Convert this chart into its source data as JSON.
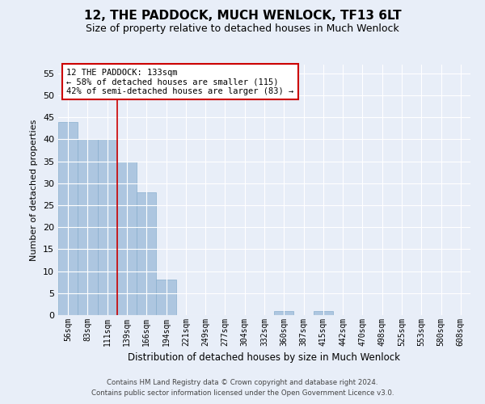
{
  "title": "12, THE PADDOCK, MUCH WENLOCK, TF13 6LT",
  "subtitle": "Size of property relative to detached houses in Much Wenlock",
  "xlabel": "Distribution of detached houses by size in Much Wenlock",
  "ylabel": "Number of detached properties",
  "categories": [
    "56sqm",
    "83sqm",
    "111sqm",
    "139sqm",
    "166sqm",
    "194sqm",
    "221sqm",
    "249sqm",
    "277sqm",
    "304sqm",
    "332sqm",
    "360sqm",
    "387sqm",
    "415sqm",
    "442sqm",
    "470sqm",
    "498sqm",
    "525sqm",
    "553sqm",
    "580sqm",
    "608sqm"
  ],
  "values": [
    44,
    40,
    40,
    35,
    28,
    8,
    0,
    0,
    0,
    0,
    0,
    1,
    0,
    1,
    0,
    0,
    0,
    0,
    0,
    0,
    0
  ],
  "bar_color": "#adc6e0",
  "bar_edge_color": "#88aece",
  "ylim": [
    0,
    57
  ],
  "yticks": [
    0,
    5,
    10,
    15,
    20,
    25,
    30,
    35,
    40,
    45,
    50,
    55
  ],
  "vline_x": 2.5,
  "vline_color": "#cc0000",
  "annotation_line1": "12 THE PADDOCK: 133sqm",
  "annotation_line2": "← 58% of detached houses are smaller (115)",
  "annotation_line3": "42% of semi-detached houses are larger (83) →",
  "annotation_box_color": "#cc0000",
  "annotation_box_fill": "#ffffff",
  "footer_line1": "Contains HM Land Registry data © Crown copyright and database right 2024.",
  "footer_line2": "Contains public sector information licensed under the Open Government Licence v3.0.",
  "background_color": "#e8eef8",
  "plot_background": "#e8eef8",
  "grid_color": "#ffffff",
  "title_fontsize": 11,
  "subtitle_fontsize": 9
}
